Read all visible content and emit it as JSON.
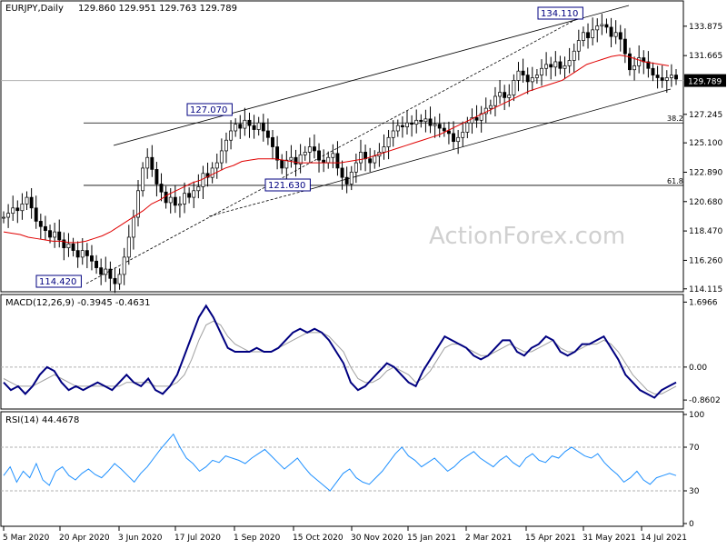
{
  "header": {
    "symbol_tf": "EURJPY,Daily",
    "ohlc": "129.860 129.951 129.763 129.789"
  },
  "watermark": "ActionForex.com",
  "colors": {
    "candle": "#000000",
    "ma": "#e00000",
    "macd_line": "#000080",
    "macd_signal": "#a0a0a0",
    "rsi": "#1e90ff",
    "channel": "#000000",
    "price_tag_bg": "#000000",
    "watermark": "#d0d0d0"
  },
  "chart_data": [
    {
      "type": "candlestick",
      "title": "EURJPY,Daily",
      "x_tick_labels": [
        "5 Mar 2020",
        "20 Apr 2020",
        "3 Jun 2020",
        "17 Jul 2020",
        "1 Sep 2020",
        "15 Oct 2020",
        "30 Nov 2020",
        "15 Jan 2021",
        "2 Mar 2021",
        "15 Apr 2021",
        "31 May 2021",
        "14 Jul 2021"
      ],
      "y_tick_labels": [
        "133.875",
        "131.665",
        "127.245",
        "125.100",
        "122.890",
        "120.680",
        "118.470",
        "116.260",
        "114.115"
      ],
      "ylim": [
        114.1,
        135.3
      ],
      "last_price": "129.789",
      "close_series": [
        119.5,
        119.8,
        120.2,
        120.0,
        120.5,
        121.0,
        120.2,
        119.2,
        118.8,
        118.5,
        118.0,
        118.4,
        117.8,
        117.2,
        117.5,
        117.0,
        116.5,
        117.0,
        116.6,
        116.2,
        115.7,
        115.2,
        115.6,
        114.9,
        114.5,
        115.2,
        116.5,
        118.0,
        119.5,
        121.5,
        123.2,
        124.0,
        123.1,
        122.0,
        121.4,
        120.6,
        121.0,
        120.4,
        120.5,
        121.3,
        121.0,
        121.5,
        121.8,
        122.8,
        122.5,
        123.2,
        123.6,
        124.5,
        125.3,
        126.0,
        126.5,
        126.2,
        126.8,
        126.4,
        126.1,
        126.6,
        126.0,
        125.5,
        124.8,
        123.8,
        123.2,
        123.8,
        124.0,
        123.5,
        124.2,
        124.4,
        124.8,
        124.5,
        123.8,
        123.6,
        124.0,
        124.3,
        123.2,
        122.5,
        122.0,
        122.9,
        123.6,
        124.4,
        123.9,
        123.6,
        124.1,
        124.4,
        124.8,
        125.5,
        126.0,
        126.4,
        126.3,
        126.6,
        126.5,
        126.8,
        126.7,
        126.9,
        126.4,
        126.5,
        126.2,
        126.0,
        125.8,
        125.2,
        125.5,
        125.9,
        126.6,
        127.0,
        126.8,
        127.3,
        127.7,
        127.9,
        128.6,
        128.9,
        128.5,
        128.7,
        129.8,
        130.5,
        130.2,
        129.7,
        130.0,
        130.2,
        130.7,
        131.0,
        130.8,
        131.2,
        130.7,
        130.9,
        131.3,
        132.0,
        132.8,
        133.4,
        133.0,
        133.6,
        133.9,
        134.0,
        133.8,
        133.1,
        133.4,
        132.9,
        131.8,
        130.6,
        130.9,
        131.5,
        131.2,
        130.7,
        130.2,
        130.0,
        129.8,
        130.0,
        130.2,
        129.9
      ],
      "ma_series": [
        118.4,
        118.3,
        118.2,
        118.0,
        117.9,
        117.8,
        117.7,
        117.7,
        117.6,
        117.6,
        117.7,
        117.9,
        118.1,
        118.4,
        118.8,
        119.2,
        119.6,
        120.0,
        120.5,
        120.8,
        121.2,
        121.5,
        121.8,
        122.1,
        122.3,
        122.6,
        122.9,
        123.2,
        123.4,
        123.7,
        123.8,
        123.9,
        123.9,
        123.9,
        123.8,
        123.7,
        123.6,
        123.6,
        123.6,
        123.6,
        123.6,
        123.6,
        123.7,
        123.8,
        123.9,
        124.1,
        124.3,
        124.5,
        124.7,
        124.9,
        125.1,
        125.3,
        125.5,
        125.7,
        126.0,
        126.3,
        126.6,
        126.9,
        127.2,
        127.5,
        127.8,
        128.1,
        128.4,
        128.7,
        129.0,
        129.2,
        129.4,
        129.6,
        129.8,
        130.2,
        130.6,
        131.0,
        131.2,
        131.4,
        131.6,
        131.7,
        131.6,
        131.4,
        131.2,
        131.1,
        131.0,
        130.9
      ],
      "fib_levels": [
        {
          "label": "38.2",
          "value": 126.6
        },
        {
          "label": "61.8",
          "value": 121.9
        }
      ],
      "annotations": [
        {
          "label": "114.420",
          "value": 114.42,
          "date_index": 24
        },
        {
          "label": "127.070",
          "value": 127.07,
          "date_index": 50
        },
        {
          "label": "121.630",
          "value": 121.63,
          "date_index": 74
        },
        {
          "label": "134.110",
          "value": 134.11,
          "date_index": 131
        }
      ]
    },
    {
      "type": "line",
      "title": "MACD(12,26,9) -0.3945 -0.4631",
      "y_tick_labels": [
        "1.6966",
        "0.00",
        "-0.8602"
      ],
      "ylim": [
        -1.0,
        1.8
      ],
      "series": [
        {
          "values": [
            -0.4,
            -0.6,
            -0.5,
            -0.7,
            -0.5,
            -0.2,
            0.0,
            -0.1,
            -0.4,
            -0.6,
            -0.5,
            -0.6,
            -0.5,
            -0.4,
            -0.5,
            -0.6,
            -0.4,
            -0.2,
            -0.4,
            -0.5,
            -0.3,
            -0.6,
            -0.7,
            -0.5,
            -0.2,
            0.3,
            0.8,
            1.3,
            1.6,
            1.3,
            0.9,
            0.5,
            0.4,
            0.4,
            0.4,
            0.5,
            0.4,
            0.4,
            0.5,
            0.7,
            0.9,
            1.0,
            0.9,
            1.0,
            0.9,
            0.7,
            0.4,
            0.1,
            -0.4,
            -0.6,
            -0.5,
            -0.3,
            -0.1,
            0.1,
            0.0,
            -0.2,
            -0.4,
            -0.5,
            -0.1,
            0.2,
            0.5,
            0.8,
            0.7,
            0.6,
            0.5,
            0.3,
            0.2,
            0.3,
            0.5,
            0.7,
            0.7,
            0.4,
            0.3,
            0.5,
            0.6,
            0.8,
            0.7,
            0.4,
            0.3,
            0.4,
            0.6,
            0.6,
            0.7,
            0.8,
            0.5,
            0.2,
            -0.2,
            -0.4,
            -0.6,
            -0.7,
            -0.8,
            -0.6,
            -0.5,
            -0.4
          ]
        },
        {
          "values": [
            -0.3,
            -0.4,
            -0.5,
            -0.5,
            -0.5,
            -0.4,
            -0.3,
            -0.2,
            -0.3,
            -0.4,
            -0.5,
            -0.5,
            -0.5,
            -0.5,
            -0.5,
            -0.5,
            -0.5,
            -0.4,
            -0.4,
            -0.4,
            -0.4,
            -0.5,
            -0.5,
            -0.5,
            -0.4,
            -0.2,
            0.2,
            0.7,
            1.1,
            1.2,
            1.1,
            0.8,
            0.6,
            0.5,
            0.4,
            0.4,
            0.4,
            0.4,
            0.5,
            0.6,
            0.7,
            0.8,
            0.9,
            0.9,
            0.9,
            0.8,
            0.6,
            0.4,
            0.0,
            -0.3,
            -0.4,
            -0.4,
            -0.3,
            -0.1,
            0.0,
            -0.1,
            -0.2,
            -0.4,
            -0.3,
            -0.1,
            0.2,
            0.5,
            0.6,
            0.6,
            0.5,
            0.4,
            0.3,
            0.3,
            0.4,
            0.5,
            0.6,
            0.5,
            0.4,
            0.4,
            0.5,
            0.6,
            0.7,
            0.5,
            0.4,
            0.4,
            0.5,
            0.6,
            0.6,
            0.7,
            0.6,
            0.4,
            0.1,
            -0.2,
            -0.4,
            -0.6,
            -0.7,
            -0.7,
            -0.6,
            -0.5
          ]
        }
      ]
    },
    {
      "type": "line",
      "title": "RSI(14) 44.4678",
      "y_tick_labels": [
        "100",
        "70",
        "30",
        "0"
      ],
      "ylim": [
        0,
        100
      ],
      "series": [
        {
          "values": [
            44,
            52,
            38,
            48,
            42,
            55,
            40,
            35,
            48,
            52,
            44,
            40,
            46,
            50,
            45,
            42,
            48,
            55,
            50,
            44,
            38,
            46,
            52,
            60,
            68,
            75,
            82,
            70,
            60,
            55,
            48,
            52,
            58,
            56,
            62,
            60,
            58,
            55,
            60,
            64,
            68,
            62,
            56,
            50,
            55,
            60,
            52,
            45,
            40,
            35,
            30,
            38,
            46,
            50,
            42,
            38,
            36,
            42,
            48,
            56,
            64,
            70,
            62,
            58,
            52,
            56,
            60,
            54,
            48,
            52,
            58,
            62,
            66,
            60,
            56,
            52,
            58,
            62,
            56,
            52,
            60,
            64,
            58,
            56,
            62,
            60,
            66,
            70,
            66,
            62,
            60,
            64,
            56,
            50,
            45,
            38,
            42,
            48,
            40,
            36,
            42,
            44,
            46,
            44
          ]
        }
      ]
    }
  ]
}
